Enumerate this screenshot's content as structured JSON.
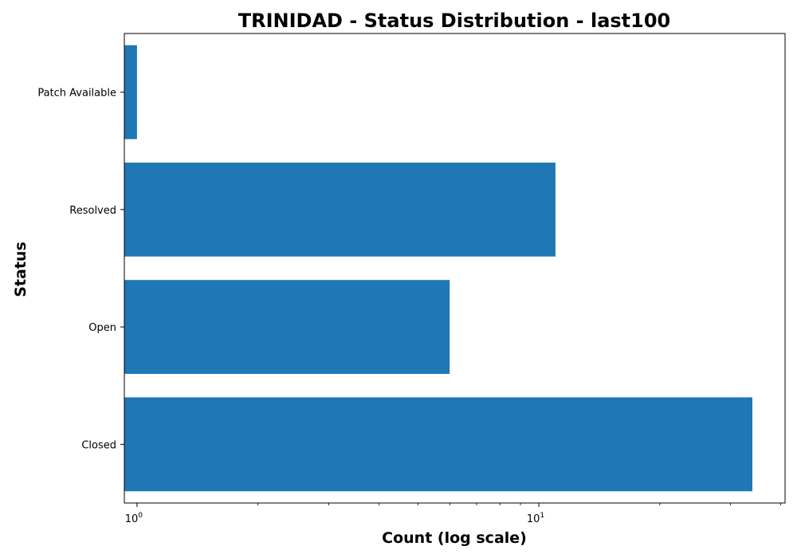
{
  "chart_data": {
    "type": "bar",
    "orientation": "horizontal",
    "title": "TRINIDAD - Status Distribution - last100",
    "xlabel": "Count (log scale)",
    "ylabel": "Status",
    "x_scale": "log",
    "xlim": [
      0.93,
      41
    ],
    "categories": [
      "Closed",
      "Open",
      "Resolved",
      "Patch Available"
    ],
    "series": [
      {
        "values": [
          34,
          6,
          11,
          1
        ],
        "color": "#1f77b4"
      }
    ],
    "x_major_ticks": [
      {
        "value": 1,
        "base": "10",
        "exponent": "0"
      },
      {
        "value": 10,
        "base": "10",
        "exponent": "1"
      }
    ],
    "grid": false,
    "legend": "none"
  }
}
